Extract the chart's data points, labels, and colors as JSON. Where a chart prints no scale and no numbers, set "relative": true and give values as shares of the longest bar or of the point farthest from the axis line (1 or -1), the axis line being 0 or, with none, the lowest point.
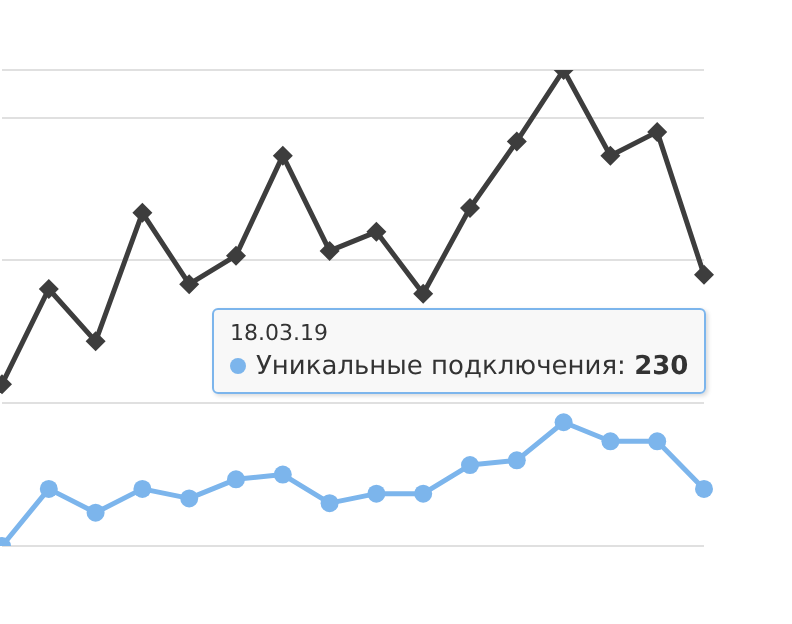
{
  "chart_data": {
    "type": "line",
    "relative": true,
    "grid": "y",
    "legend": "right",
    "categories": [
      null,
      null,
      null,
      null,
      null,
      null,
      null,
      null,
      null,
      null,
      null,
      null,
      null,
      null,
      null,
      null
    ],
    "series": [
      {
        "color": "#3d3d3d",
        "marker": "diamond",
        "values": [
          0.34,
          0.54,
          0.43,
          0.7,
          0.55,
          0.61,
          0.82,
          0.62,
          0.66,
          0.53,
          0.71,
          0.85,
          1,
          0.82,
          0.87,
          0.57
        ]
      },
      {
        "name": "Уникальные подключения:",
        "color": "#7cb5ec",
        "marker": "circle",
        "values": [
          0,
          0.12,
          0.07,
          0.12,
          0.1,
          0.14,
          0.15,
          0.09,
          0.11,
          0.11,
          0.17,
          0.18,
          0.26,
          0.22,
          0.22,
          0.12
        ]
      }
    ],
    "annotations": [
      "18.03.19",
      "230"
    ]
  }
}
